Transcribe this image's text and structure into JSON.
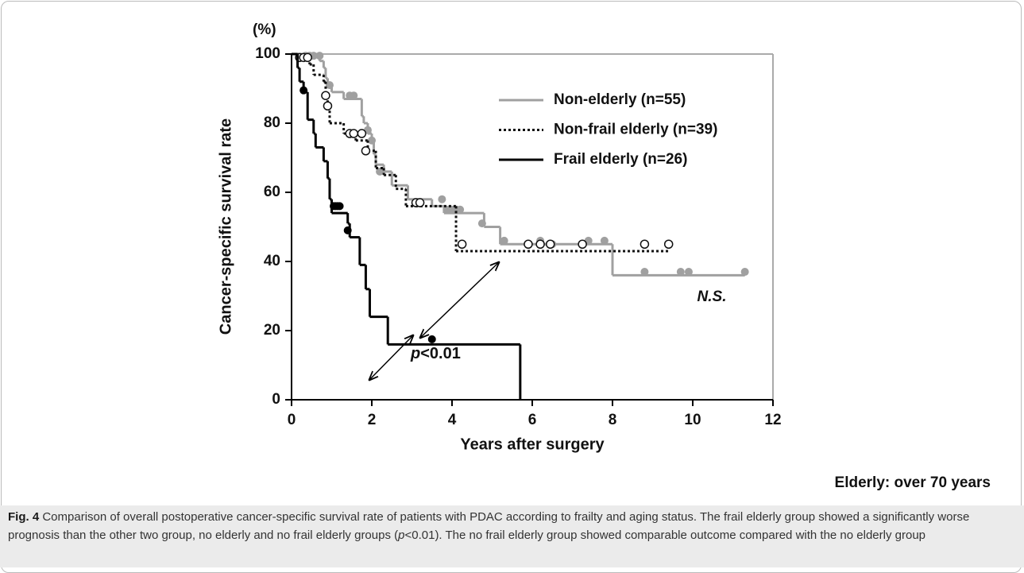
{
  "chart_data": {
    "type": "kaplan-meier",
    "y_unit_label": "(%)",
    "x_label": "Years after surgery",
    "y_label": "Cancer-specific survival rate",
    "xlim": [
      0,
      12
    ],
    "ylim": [
      0,
      100
    ],
    "xticks": [
      0,
      2,
      4,
      6,
      8,
      10,
      12
    ],
    "yticks": [
      0,
      20,
      40,
      60,
      80,
      100
    ],
    "series": [
      {
        "name": "Non-elderly (n=55)",
        "color": "#a0a0a0",
        "line_style": "solid",
        "marker": "filled",
        "x": [
          0,
          0.7,
          0.8,
          0.85,
          0.9,
          1.0,
          1.3,
          1.75,
          1.8,
          1.9,
          2.0,
          2.05,
          2.1,
          2.3,
          2.5,
          2.9,
          3.5,
          3.8,
          4.8,
          5.2,
          8.0,
          11.3
        ],
        "values": [
          100,
          98,
          96,
          93,
          91,
          89,
          87,
          82,
          80,
          77,
          75,
          71,
          68,
          66,
          62,
          58,
          56,
          54,
          50,
          45,
          36,
          36
        ],
        "censored_x": [
          0.2,
          0.35,
          0.45,
          0.55,
          0.7,
          0.95,
          1.45,
          1.55,
          1.9,
          2.0,
          2.2,
          3.15,
          3.75,
          3.9,
          4.0,
          4.1,
          4.2,
          4.75,
          5.3,
          6.2,
          6.5,
          7.4,
          7.8,
          8.8,
          9.7,
          9.9,
          11.3
        ],
        "censored_values": [
          99,
          99.5,
          99.5,
          99.5,
          99.5,
          91,
          88,
          88,
          78,
          75,
          66,
          57,
          58,
          55,
          55,
          55,
          55,
          51,
          46,
          46,
          45,
          46,
          46,
          37,
          37,
          37,
          37
        ]
      },
      {
        "name": "Non-frail elderly (n=39)",
        "color": "#111111",
        "line_style": "dotted",
        "marker": "open",
        "x": [
          0,
          0.15,
          0.45,
          0.55,
          0.8,
          0.85,
          0.9,
          0.95,
          1.3,
          1.6,
          1.9,
          2.1,
          2.3,
          2.6,
          2.85,
          4.1,
          9.4
        ],
        "values": [
          100,
          99,
          97,
          94,
          92,
          88,
          85,
          80,
          77,
          75,
          72,
          67,
          65,
          61,
          56,
          43,
          43
        ],
        "censored_x": [
          0.2,
          0.3,
          0.4,
          0.85,
          0.9,
          1.45,
          1.55,
          1.75,
          1.85,
          3.1,
          3.2,
          4.25,
          5.9,
          6.2,
          6.45,
          7.25,
          8.8,
          9.4
        ],
        "censored_values": [
          99,
          99,
          99,
          88,
          85,
          77,
          77,
          77,
          72,
          57,
          57,
          45,
          45,
          45,
          45,
          45,
          45,
          45
        ]
      },
      {
        "name": "Frail elderly (n=26)",
        "color": "#000000",
        "line_style": "solid",
        "marker": "filled",
        "x": [
          0,
          0.15,
          0.2,
          0.3,
          0.4,
          0.55,
          0.6,
          0.8,
          0.9,
          0.95,
          1.0,
          1.4,
          1.45,
          1.7,
          1.85,
          1.95,
          2.4,
          5.7
        ],
        "values": [
          100,
          96,
          92,
          89,
          81,
          77,
          73,
          69,
          64,
          58,
          54,
          51,
          47,
          39,
          32,
          24,
          16,
          0
        ],
        "censored_x": [
          0.3,
          1.05,
          1.1,
          1.15,
          1.2,
          1.4,
          3.5
        ],
        "censored_values": [
          89.5,
          56,
          56,
          56,
          56,
          49,
          17.5
        ]
      }
    ],
    "ns_label": "N.S.",
    "p_label": [
      "p",
      "<0.01"
    ],
    "footnote": "Elderly: over 70 years"
  },
  "caption": {
    "label": "Fig. 4",
    "text_1": "Comparison of overall postoperative cancer-specific survival rate of patients with PDAC according to frailty and aging status. The frail elderly group showed a significantly worse prognosis than the other two group, no elderly and no frail elderly groups (",
    "p": "p",
    "text_2": "<0.01). The no frail elderly group showed comparable outcome compared with the no elderly group"
  }
}
